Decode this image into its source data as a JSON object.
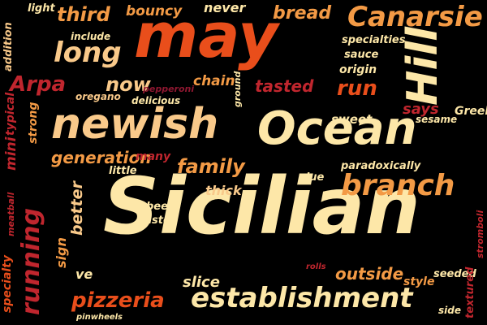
{
  "palette": {
    "background": "#000000",
    "cream": "#FDE7A8",
    "peach": "#F9C98A",
    "orange": "#F39A45",
    "red_orange": "#E94E1B",
    "crimson": "#C0262E",
    "dark_red": "#8E1730"
  },
  "words": [
    {
      "id": "sicilian",
      "text": "Sicilian",
      "color": "#FDE7A8"
    },
    {
      "id": "may",
      "text": "may",
      "color": "#E94E1B"
    },
    {
      "id": "newish",
      "text": "newish",
      "color": "#F9C98A"
    },
    {
      "id": "ocean",
      "text": "Ocean",
      "color": "#FDE7A8"
    },
    {
      "id": "hill",
      "text": "Hill",
      "color": "#FDE7A8"
    },
    {
      "id": "establishment",
      "text": "establishment",
      "color": "#FDE7A8"
    },
    {
      "id": "canarsie",
      "text": "Canarsie",
      "color": "#F39A45"
    },
    {
      "id": "long",
      "text": "long",
      "color": "#F9C98A"
    },
    {
      "id": "branch",
      "text": "branch",
      "color": "#F39A45"
    },
    {
      "id": "running",
      "text": "running",
      "color": "#C0262E"
    },
    {
      "id": "pizzeria",
      "text": "pizzeria",
      "color": "#E94E1B"
    },
    {
      "id": "family",
      "text": "family",
      "color": "#F39A45"
    },
    {
      "id": "third",
      "text": "third",
      "color": "#F39A45"
    },
    {
      "id": "arpa",
      "text": "Arpa",
      "color": "#C0262E"
    },
    {
      "id": "now",
      "text": "now",
      "color": "#F9C98A"
    },
    {
      "id": "bread",
      "text": "bread",
      "color": "#F39A45"
    },
    {
      "id": "run",
      "text": "run",
      "color": "#E94E1B"
    },
    {
      "id": "tasted",
      "text": "tasted",
      "color": "#C0262E"
    },
    {
      "id": "bouncy",
      "text": "bouncy",
      "color": "#F39A45"
    },
    {
      "id": "never",
      "text": "never",
      "color": "#FDE7A8"
    },
    {
      "id": "generation",
      "text": "generation",
      "color": "#F39A45"
    },
    {
      "id": "outside",
      "text": "outside",
      "color": "#F39A45"
    },
    {
      "id": "slice",
      "text": "slice",
      "color": "#FDE7A8"
    },
    {
      "id": "chain",
      "text": "chain",
      "color": "#F39A45"
    },
    {
      "id": "thick",
      "text": "thick",
      "color": "#F9C98A"
    },
    {
      "id": "better",
      "text": "better",
      "color": "#F9C98A"
    },
    {
      "id": "says",
      "text": "says",
      "color": "#C0262E"
    },
    {
      "id": "light",
      "text": "light",
      "color": "#FDE7A8"
    },
    {
      "id": "include",
      "text": "include",
      "color": "#FDE7A8"
    },
    {
      "id": "addition",
      "text": "addition",
      "color": "#F9C98A"
    },
    {
      "id": "specialties",
      "text": "specialties",
      "color": "#FDE7A8"
    },
    {
      "id": "sauce",
      "text": "sauce",
      "color": "#FDE7A8"
    },
    {
      "id": "origin",
      "text": "origin",
      "color": "#FDE7A8"
    },
    {
      "id": "pepperoni",
      "text": "pepperoni",
      "color": "#8E1730"
    },
    {
      "id": "oregano",
      "text": "oregano",
      "color": "#F9C98A"
    },
    {
      "id": "delicious",
      "text": "delicious",
      "color": "#FDE7A8"
    },
    {
      "id": "ground",
      "text": "ground",
      "color": "#FDE7A8"
    },
    {
      "id": "typical",
      "text": "typical",
      "color": "#C0262E"
    },
    {
      "id": "strong",
      "text": "strong",
      "color": "#F39A45"
    },
    {
      "id": "mini",
      "text": "mini",
      "color": "#C0262E"
    },
    {
      "id": "sweet",
      "text": "sweet",
      "color": "#FDE7A8"
    },
    {
      "id": "sesame",
      "text": "sesame",
      "color": "#FDE7A8"
    },
    {
      "id": "greek",
      "text": "Greek",
      "color": "#FDE7A8"
    },
    {
      "id": "many",
      "text": "many",
      "color": "#C0262E"
    },
    {
      "id": "little",
      "text": "little",
      "color": "#FDE7A8"
    },
    {
      "id": "paradoxically",
      "text": "paradoxically",
      "color": "#FDE7A8"
    },
    {
      "id": "due",
      "text": "due",
      "color": "#FDE7A8"
    },
    {
      "id": "meatball",
      "text": "meatball",
      "color": "#C0262E"
    },
    {
      "id": "specialty",
      "text": "specialty",
      "color": "#E94E1B"
    },
    {
      "id": "sign",
      "text": "sign",
      "color": "#F39A45"
    },
    {
      "id": "beef",
      "text": "beef",
      "color": "#FDE7A8"
    },
    {
      "id": "taste",
      "text": "taste",
      "color": "#FDE7A8"
    },
    {
      "id": "ve",
      "text": "ve",
      "color": "#FDE7A8"
    },
    {
      "id": "rolls",
      "text": "rolls",
      "color": "#C0262E"
    },
    {
      "id": "seeded",
      "text": "seeded",
      "color": "#FDE7A8"
    },
    {
      "id": "style",
      "text": "style",
      "color": "#F39A45"
    },
    {
      "id": "textured",
      "text": "textured",
      "color": "#C0262E"
    },
    {
      "id": "stromboli",
      "text": "stromboli",
      "color": "#C0262E"
    },
    {
      "id": "side",
      "text": "side",
      "color": "#FDE7A8"
    },
    {
      "id": "pinwheels",
      "text": "pinwheels",
      "color": "#FDE7A8"
    }
  ]
}
